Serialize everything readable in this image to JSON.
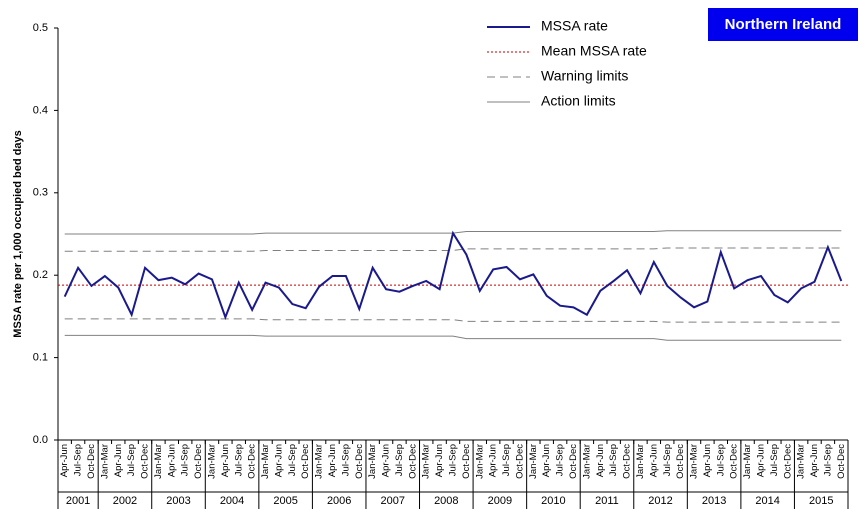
{
  "chart_data": {
    "type": "line",
    "badge": "Northern Ireland",
    "y_label": "MSSA rate per 1,000 occupied bed days",
    "ylim": [
      0,
      0.5
    ],
    "yticks": [
      {
        "value": 0,
        "label": "0.0"
      },
      0.1,
      0.2,
      0.3,
      0.4,
      0.5
    ],
    "groups": [
      {
        "label": "2001",
        "categories": [
          "Apr-Jun",
          "Jul-Sep",
          "Oct-Dec"
        ]
      },
      {
        "label": "2002",
        "categories": [
          "Jan-Mar",
          "Apr-Jun",
          "Jul-Sep",
          "Oct-Dec"
        ]
      },
      {
        "label": "2003",
        "categories": [
          "Jan-Mar",
          "Apr-Jun",
          "Jul-Sep",
          "Oct-Dec"
        ]
      },
      {
        "label": "2004",
        "categories": [
          "Jan-Mar",
          "Apr-Jun",
          "Jul-Sep",
          "Oct-Dec"
        ]
      },
      {
        "label": "2005",
        "categories": [
          "Jan-Mar",
          "Apr-Jun",
          "Jul-Sep",
          "Oct-Dec"
        ]
      },
      {
        "label": "2006",
        "categories": [
          "Jan-Mar",
          "Apr-Jun",
          "Jul-Sep",
          "Oct-Dec"
        ]
      },
      {
        "label": "2007",
        "categories": [
          "Jan-Mar",
          "Apr-Jun",
          "Jul-Sep",
          "Oct-Dec"
        ]
      },
      {
        "label": "2008",
        "categories": [
          "Jan-Mar",
          "Apr-Jun",
          "Jul-Sep",
          "Oct-Dec"
        ]
      },
      {
        "label": "2009",
        "categories": [
          "Jan-Mar",
          "Apr-Jun",
          "Jul-Sep",
          "Oct-Dec"
        ]
      },
      {
        "label": "2010",
        "categories": [
          "Jan-Mar",
          "Apr-Jun",
          "Jul-Sep",
          "Oct-Dec"
        ]
      },
      {
        "label": "2011",
        "categories": [
          "Jan-Mar",
          "Apr-Jun",
          "Jul-Sep",
          "Oct-Dec"
        ]
      },
      {
        "label": "2012",
        "categories": [
          "Jan-Mar",
          "Apr-Jun",
          "Jul-Sep",
          "Oct-Dec"
        ]
      },
      {
        "label": "2013",
        "categories": [
          "Jan-Mar",
          "Apr-Jun",
          "Jul-Sep",
          "Oct-Dec"
        ]
      },
      {
        "label": "2014",
        "categories": [
          "Jan-Mar",
          "Apr-Jun",
          "Jul-Sep",
          "Oct-Dec"
        ]
      },
      {
        "label": "2015",
        "categories": [
          "Jan-Mar",
          "Apr-Jun",
          "Jul-Sep",
          "Oct-Dec"
        ]
      }
    ],
    "series": [
      {
        "name": "MSSA rate",
        "color": "#1a1a8c",
        "style": "solid",
        "values": [
          0.174,
          0.209,
          0.187,
          0.199,
          0.185,
          0.152,
          0.209,
          0.194,
          0.197,
          0.189,
          0.202,
          0.195,
          0.149,
          0.191,
          0.158,
          0.191,
          0.185,
          0.165,
          0.16,
          0.186,
          0.199,
          0.199,
          0.159,
          0.209,
          0.183,
          0.18,
          0.187,
          0.193,
          0.183,
          0.251,
          0.225,
          0.181,
          0.207,
          0.21,
          0.195,
          0.201,
          0.175,
          0.163,
          0.161,
          0.152,
          0.181,
          0.193,
          0.206,
          0.178,
          0.216,
          0.187,
          0.173,
          0.161,
          0.168,
          0.228,
          0.184,
          0.194,
          0.199,
          0.176,
          0.167,
          0.184,
          0.192,
          0.234,
          0.193
        ]
      },
      {
        "name": "Mean MSSA rate",
        "color": "#c00000",
        "style": "dotted",
        "value": 0.188
      },
      {
        "name": "Warning limits",
        "color": "#808080",
        "style": "dashed",
        "values": [
          0.229,
          0.229,
          0.229,
          0.229,
          0.229,
          0.229,
          0.229,
          0.229,
          0.229,
          0.229,
          0.229,
          0.229,
          0.229,
          0.229,
          0.229,
          0.23,
          0.23,
          0.23,
          0.23,
          0.23,
          0.23,
          0.23,
          0.23,
          0.23,
          0.23,
          0.23,
          0.23,
          0.23,
          0.23,
          0.23,
          0.232,
          0.232,
          0.232,
          0.232,
          0.232,
          0.232,
          0.232,
          0.232,
          0.232,
          0.232,
          0.232,
          0.232,
          0.232,
          0.232,
          0.232,
          0.233,
          0.233,
          0.233,
          0.233,
          0.233,
          0.233,
          0.233,
          0.233,
          0.233,
          0.233,
          0.233,
          0.233,
          0.233,
          0.233
        ],
        "lower_values": [
          0.147,
          0.147,
          0.147,
          0.147,
          0.147,
          0.147,
          0.147,
          0.147,
          0.147,
          0.147,
          0.147,
          0.147,
          0.147,
          0.147,
          0.147,
          0.146,
          0.146,
          0.146,
          0.146,
          0.146,
          0.146,
          0.146,
          0.146,
          0.146,
          0.146,
          0.146,
          0.146,
          0.146,
          0.146,
          0.146,
          0.144,
          0.144,
          0.144,
          0.144,
          0.144,
          0.144,
          0.144,
          0.144,
          0.144,
          0.144,
          0.144,
          0.144,
          0.144,
          0.144,
          0.144,
          0.143,
          0.143,
          0.143,
          0.143,
          0.143,
          0.143,
          0.143,
          0.143,
          0.143,
          0.143,
          0.143,
          0.143,
          0.143,
          0.143
        ]
      },
      {
        "name": "Action limits",
        "color": "#808080",
        "style": "solid",
        "values": [
          0.25,
          0.25,
          0.25,
          0.25,
          0.25,
          0.25,
          0.25,
          0.25,
          0.25,
          0.25,
          0.25,
          0.25,
          0.25,
          0.25,
          0.25,
          0.251,
          0.251,
          0.251,
          0.251,
          0.251,
          0.251,
          0.251,
          0.251,
          0.251,
          0.251,
          0.251,
          0.251,
          0.251,
          0.251,
          0.251,
          0.253,
          0.253,
          0.253,
          0.253,
          0.253,
          0.253,
          0.253,
          0.253,
          0.253,
          0.253,
          0.253,
          0.253,
          0.253,
          0.253,
          0.253,
          0.254,
          0.254,
          0.254,
          0.254,
          0.254,
          0.254,
          0.254,
          0.254,
          0.254,
          0.254,
          0.254,
          0.254,
          0.254,
          0.254
        ],
        "lower_values": [
          0.127,
          0.127,
          0.127,
          0.127,
          0.127,
          0.127,
          0.127,
          0.127,
          0.127,
          0.127,
          0.127,
          0.127,
          0.127,
          0.127,
          0.127,
          0.126,
          0.126,
          0.126,
          0.126,
          0.126,
          0.126,
          0.126,
          0.126,
          0.126,
          0.126,
          0.126,
          0.126,
          0.126,
          0.126,
          0.126,
          0.123,
          0.123,
          0.123,
          0.123,
          0.123,
          0.123,
          0.123,
          0.123,
          0.123,
          0.123,
          0.123,
          0.123,
          0.123,
          0.123,
          0.123,
          0.121,
          0.121,
          0.121,
          0.121,
          0.121,
          0.121,
          0.121,
          0.121,
          0.121,
          0.121,
          0.121,
          0.121,
          0.121,
          0.121
        ]
      }
    ]
  }
}
